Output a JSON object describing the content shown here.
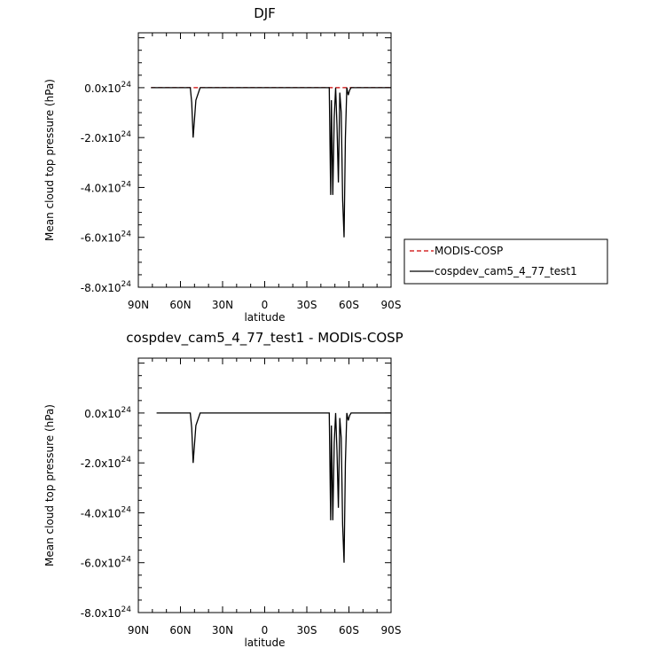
{
  "chart_data": [
    {
      "type": "line",
      "title": "DJF",
      "xlabel": "latitude",
      "ylabel": "Mean cloud top pressure (hPa)",
      "xlim": [
        90,
        -90
      ],
      "ylim": [
        -8e+24,
        2.2e+24
      ],
      "x_tick_labels": [
        "90N",
        "60N",
        "30N",
        "0",
        "30S",
        "60S",
        "90S"
      ],
      "x_ticks": [
        90,
        60,
        30,
        0,
        -30,
        -60,
        -90
      ],
      "y_tick_labels": [
        {
          "mant": "0.0x10",
          "exp": "24",
          "value": 0
        },
        {
          "mant": "-2.0x10",
          "exp": "24",
          "value": -2e+24
        },
        {
          "mant": "-4.0x10",
          "exp": "24",
          "value": -4e+24
        },
        {
          "mant": "-6.0x10",
          "exp": "24",
          "value": -6e+24
        },
        {
          "mant": "-8.0x10",
          "exp": "24",
          "value": -8e+24
        }
      ],
      "legend": {
        "placement": "right",
        "entries": [
          {
            "name": "MODIS-COSP",
            "color": "#cc0000",
            "dash": true
          },
          {
            "name": "cospdev_cam5_4_77_test1",
            "color": "#000000",
            "dash": false
          }
        ]
      },
      "series": [
        {
          "name": "MODIS-COSP",
          "color": "#cc0000",
          "x": [
            81,
            -90
          ],
          "y": [
            0,
            0
          ]
        },
        {
          "name": "cospdev_cam5_4_77_test1",
          "color": "#000000",
          "x": [
            81,
            56,
            53,
            52,
            51,
            49,
            46,
            -46,
            -47,
            -47.5,
            -48.5,
            -49.5,
            -50.5,
            -51.5,
            -52.5,
            -53.5,
            -54.5,
            -55.5,
            -56.5,
            -57.5,
            -58.5,
            -59.5,
            -60.5,
            -61.5,
            -62.5,
            -64,
            -90
          ],
          "y": [
            0,
            0,
            0,
            -6e+23,
            -2e+24,
            -5e+23,
            0,
            0,
            -4.3e+24,
            -5e+23,
            -4.3e+24,
            -1.2e+24,
            0,
            -1.5e+24,
            -3.8e+24,
            -2e+23,
            -1e+24,
            -4.5e+24,
            -6e+24,
            -2e+24,
            0,
            -3e+23,
            -1e+23,
            0,
            0,
            0,
            0
          ]
        }
      ]
    },
    {
      "type": "line",
      "title": "cospdev_cam5_4_77_test1 - MODIS-COSP",
      "xlabel": "latitude",
      "ylabel": "Mean cloud top pressure (hPa)",
      "xlim": [
        90,
        -90
      ],
      "ylim": [
        -8e+24,
        2.2e+24
      ],
      "x_tick_labels": [
        "90N",
        "60N",
        "30N",
        "0",
        "30S",
        "60S",
        "90S"
      ],
      "x_ticks": [
        90,
        60,
        30,
        0,
        -30,
        -60,
        -90
      ],
      "y_tick_labels": [
        {
          "mant": "0.0x10",
          "exp": "24",
          "value": 0
        },
        {
          "mant": "-2.0x10",
          "exp": "24",
          "value": -2e+24
        },
        {
          "mant": "-4.0x10",
          "exp": "24",
          "value": -4e+24
        },
        {
          "mant": "-6.0x10",
          "exp": "24",
          "value": -6e+24
        },
        {
          "mant": "-8.0x10",
          "exp": "24",
          "value": -8e+24
        }
      ],
      "series": [
        {
          "color": "#000000",
          "x": [
            77,
            56,
            53,
            52,
            51,
            49,
            46,
            -46,
            -47,
            -47.5,
            -48.5,
            -49.5,
            -50.5,
            -51.5,
            -52.5,
            -53.5,
            -54.5,
            -55.5,
            -56.5,
            -57.5,
            -58.5,
            -59.5,
            -60.5,
            -61.5,
            -62.5,
            -64,
            -90
          ],
          "y": [
            0,
            0,
            0,
            -6e+23,
            -2e+24,
            -5e+23,
            0,
            0,
            -4.3e+24,
            -5e+23,
            -4.3e+24,
            -1.2e+24,
            0,
            -1.5e+24,
            -3.8e+24,
            -2e+23,
            -1e+24,
            -4.5e+24,
            -6e+24,
            -2e+24,
            0,
            -3e+23,
            -1e+23,
            0,
            0,
            0,
            0
          ]
        }
      ]
    }
  ]
}
